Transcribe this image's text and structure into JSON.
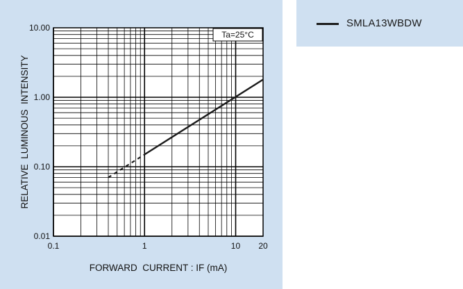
{
  "chart_data": {
    "type": "line",
    "title": "",
    "xlabel": "FORWARD  CURRENT : IF (mA)",
    "ylabel": "RELATIVE  LUMINOUS  INTENSITY",
    "x_scale": "log",
    "y_scale": "log",
    "xlim": [
      0.1,
      20
    ],
    "ylim": [
      0.01,
      10
    ],
    "x_ticks": [
      "0.1",
      "1",
      "10",
      "20"
    ],
    "y_ticks": [
      "10.00",
      "1.00",
      "0.10",
      "0.01"
    ],
    "annotation": "Ta=25°C",
    "grid": true,
    "legend_position": "outside-right",
    "series": [
      {
        "name": "SMLA13WBDW",
        "color": "#1a1a1a",
        "solid": {
          "x": [
            1,
            20
          ],
          "y": [
            0.15,
            1.8
          ]
        },
        "dashed": {
          "x": [
            0.4,
            1
          ],
          "y": [
            0.07,
            0.15
          ]
        }
      }
    ]
  }
}
